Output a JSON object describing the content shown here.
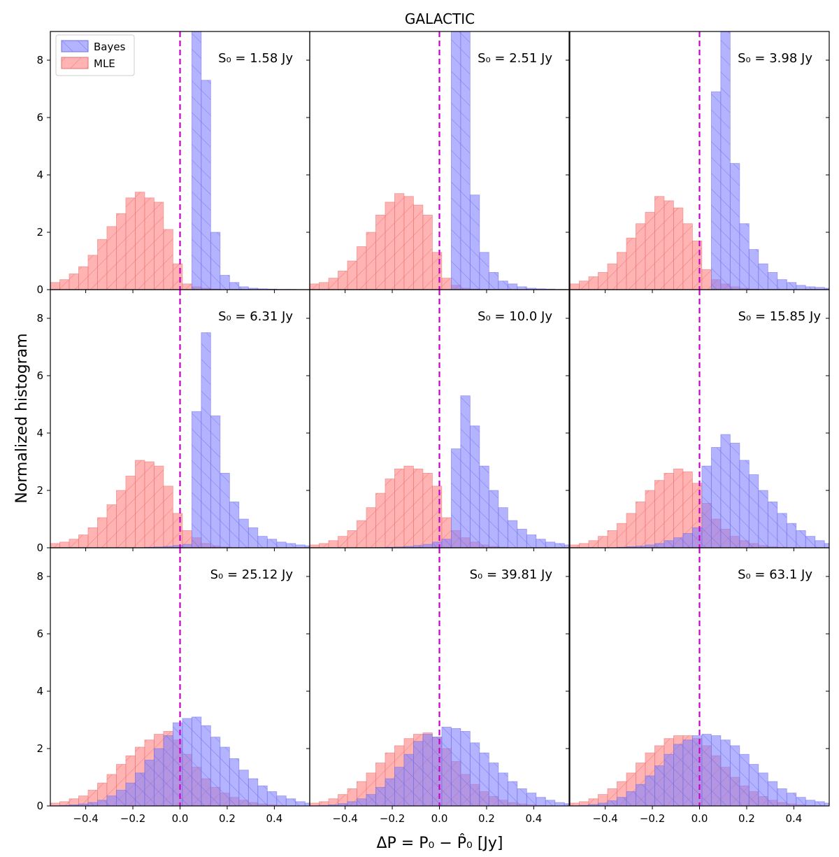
{
  "figure": {
    "title": "GALACTIC",
    "xlabel": "ΔP = P₀ − P̂₀ [Jy]",
    "ylabel": "Normalized histogram"
  },
  "legend": {
    "placement": "top-left of first panel",
    "entries": [
      {
        "name": "Bayes",
        "color": "#8080ff"
      },
      {
        "name": "MLE",
        "color": "#ff8080"
      }
    ]
  },
  "chart_data": {
    "type": "bar",
    "layout": "3x3 grid of histograms, shared axes",
    "xlim": [
      -0.55,
      0.55
    ],
    "ylim": [
      0,
      9
    ],
    "x_ticks": [
      -0.4,
      -0.2,
      0.0,
      0.2,
      0.4
    ],
    "x_tick_labels": [
      "−0.4",
      "−0.2",
      "0.0",
      "0.2",
      "0.4"
    ],
    "y_ticks": [
      0,
      2,
      4,
      6,
      8
    ],
    "y_tick_labels": [
      "0",
      "2",
      "4",
      "6",
      "8"
    ],
    "bin_start": -0.55,
    "bin_width": 0.04,
    "reference_line": {
      "x": 0.0,
      "style": "dashed",
      "color": "#cc00cc"
    },
    "colors": {
      "Bayes": "#8080ff",
      "MLE": "#ff8080",
      "Bayes_edge": "#7070e6",
      "MLE_edge": "#e67070"
    },
    "panels": [
      {
        "label": "S₀ = 1.58 Jy",
        "Bayes": [
          0,
          0,
          0,
          0,
          0,
          0,
          0,
          0,
          0,
          0,
          0,
          0,
          0,
          0,
          0,
          10.0,
          7.3,
          2.0,
          0.5,
          0.25,
          0.1,
          0.05,
          0.03,
          0.02,
          0.01,
          0.01,
          0,
          0
        ],
        "MLE": [
          0.25,
          0.35,
          0.55,
          0.8,
          1.2,
          1.75,
          2.2,
          2.65,
          3.2,
          3.4,
          3.2,
          3.05,
          2.1,
          0.9,
          0.2,
          0.1,
          0.05,
          0.02,
          0,
          0,
          0,
          0,
          0,
          0,
          0,
          0,
          0,
          0
        ]
      },
      {
        "label": "S₀ = 2.51 Jy",
        "Bayes": [
          0,
          0,
          0,
          0,
          0,
          0,
          0,
          0,
          0,
          0,
          0,
          0,
          0,
          0,
          0,
          10.0,
          9.5,
          3.3,
          1.3,
          0.6,
          0.3,
          0.2,
          0.1,
          0.05,
          0.03,
          0.02,
          0.01,
          0.01
        ],
        "MLE": [
          0.2,
          0.25,
          0.4,
          0.65,
          1.0,
          1.5,
          2.0,
          2.6,
          3.05,
          3.35,
          3.25,
          2.95,
          2.6,
          1.3,
          0.4,
          0.15,
          0.05,
          0.02,
          0,
          0,
          0,
          0,
          0,
          0,
          0,
          0,
          0,
          0
        ]
      },
      {
        "label": "S₀ = 3.98 Jy",
        "Bayes": [
          0,
          0,
          0,
          0,
          0,
          0,
          0,
          0,
          0,
          0,
          0,
          0,
          0,
          0,
          0,
          6.9,
          10.0,
          4.4,
          2.3,
          1.4,
          0.9,
          0.6,
          0.35,
          0.25,
          0.15,
          0.1,
          0.08,
          0.05
        ],
        "MLE": [
          0.2,
          0.3,
          0.45,
          0.6,
          0.9,
          1.3,
          1.8,
          2.3,
          2.7,
          3.25,
          3.1,
          2.85,
          2.3,
          1.7,
          0.7,
          0.35,
          0.2,
          0.1,
          0.05,
          0.02,
          0,
          0,
          0,
          0,
          0,
          0,
          0,
          0
        ]
      },
      {
        "label": "S₀ = 6.31 Jy",
        "Bayes": [
          0,
          0,
          0,
          0,
          0,
          0,
          0,
          0,
          0,
          0,
          0.02,
          0.03,
          0.05,
          0.08,
          0.12,
          4.75,
          7.5,
          4.6,
          2.6,
          1.6,
          1.0,
          0.7,
          0.4,
          0.3,
          0.2,
          0.15,
          0.1,
          0.07
        ],
        "MLE": [
          0.15,
          0.2,
          0.3,
          0.45,
          0.7,
          1.05,
          1.5,
          2.0,
          2.5,
          3.05,
          3.0,
          2.85,
          2.15,
          1.2,
          0.6,
          0.35,
          0.15,
          0.07,
          0.03,
          0.01,
          0,
          0,
          0,
          0,
          0,
          0,
          0,
          0
        ]
      },
      {
        "label": "S₀ = 10.0 Jy",
        "Bayes": [
          0,
          0,
          0,
          0,
          0,
          0,
          0,
          0.01,
          0.02,
          0.03,
          0.05,
          0.08,
          0.12,
          0.2,
          0.3,
          3.45,
          5.3,
          4.25,
          2.85,
          2.0,
          1.4,
          0.95,
          0.65,
          0.45,
          0.3,
          0.2,
          0.15,
          0.1
        ],
        "MLE": [
          0.1,
          0.15,
          0.25,
          0.4,
          0.6,
          0.95,
          1.4,
          1.9,
          2.4,
          2.75,
          2.85,
          2.75,
          2.6,
          2.15,
          1.05,
          0.6,
          0.35,
          0.2,
          0.1,
          0.05,
          0.02,
          0,
          0,
          0,
          0,
          0,
          0,
          0
        ]
      },
      {
        "label": "S₀ = 15.85 Jy",
        "Bayes": [
          0,
          0,
          0,
          0,
          0,
          0.02,
          0.04,
          0.06,
          0.1,
          0.15,
          0.25,
          0.35,
          0.5,
          0.7,
          2.85,
          3.5,
          3.95,
          3.65,
          3.05,
          2.55,
          2.0,
          1.6,
          1.2,
          0.85,
          0.6,
          0.4,
          0.25,
          0.15
        ],
        "MLE": [
          0.1,
          0.15,
          0.25,
          0.4,
          0.6,
          0.85,
          1.2,
          1.6,
          2.0,
          2.35,
          2.6,
          2.75,
          2.65,
          2.25,
          1.55,
          1.0,
          0.65,
          0.4,
          0.25,
          0.15,
          0.08,
          0.04,
          0.02,
          0,
          0,
          0,
          0,
          0
        ],
        "label_x_shift": 12
      },
      {
        "label": "S₀ = 25.12 Jy",
        "Bayes": [
          0.01,
          0.02,
          0.04,
          0.07,
          0.12,
          0.2,
          0.35,
          0.55,
          0.8,
          1.15,
          1.6,
          2.0,
          2.45,
          2.9,
          3.05,
          3.1,
          2.8,
          2.4,
          2.05,
          1.65,
          1.25,
          0.95,
          0.7,
          0.5,
          0.35,
          0.25,
          0.15,
          0.1
        ],
        "MLE": [
          0.1,
          0.15,
          0.25,
          0.35,
          0.55,
          0.8,
          1.1,
          1.45,
          1.75,
          2.05,
          2.3,
          2.5,
          2.6,
          2.3,
          1.8,
          1.35,
          0.95,
          0.65,
          0.45,
          0.3,
          0.2,
          0.12,
          0.07,
          0.04,
          0.02,
          0.01,
          0,
          0
        ]
      },
      {
        "label": "S₀ = 39.81 Jy",
        "Bayes": [
          0.01,
          0.02,
          0.04,
          0.08,
          0.15,
          0.25,
          0.4,
          0.65,
          0.95,
          1.35,
          1.8,
          2.25,
          2.5,
          2.4,
          2.75,
          2.7,
          2.6,
          2.2,
          1.85,
          1.5,
          1.15,
          0.85,
          0.6,
          0.45,
          0.3,
          0.2,
          0.12,
          0.08
        ],
        "MLE": [
          0.1,
          0.15,
          0.25,
          0.4,
          0.6,
          0.85,
          1.15,
          1.5,
          1.85,
          2.1,
          2.35,
          2.5,
          2.55,
          2.4,
          2.0,
          1.55,
          1.1,
          0.75,
          0.5,
          0.33,
          0.2,
          0.12,
          0.07,
          0.04,
          0.02,
          0.01,
          0,
          0
        ]
      },
      {
        "label": "S₀ = 63.1 Jy",
        "Bayes": [
          0.01,
          0.02,
          0.05,
          0.1,
          0.18,
          0.3,
          0.5,
          0.75,
          1.05,
          1.4,
          1.8,
          2.15,
          2.3,
          2.45,
          2.5,
          2.45,
          2.3,
          2.1,
          1.8,
          1.45,
          1.15,
          0.85,
          0.6,
          0.45,
          0.3,
          0.2,
          0.15,
          0.1
        ],
        "MLE": [
          0.1,
          0.15,
          0.25,
          0.4,
          0.6,
          0.85,
          1.15,
          1.5,
          1.85,
          2.1,
          2.35,
          2.45,
          2.45,
          2.35,
          2.1,
          1.75,
          1.35,
          1.0,
          0.7,
          0.5,
          0.33,
          0.2,
          0.12,
          0.07,
          0.04,
          0.02,
          0.01,
          0
        ]
      }
    ]
  }
}
